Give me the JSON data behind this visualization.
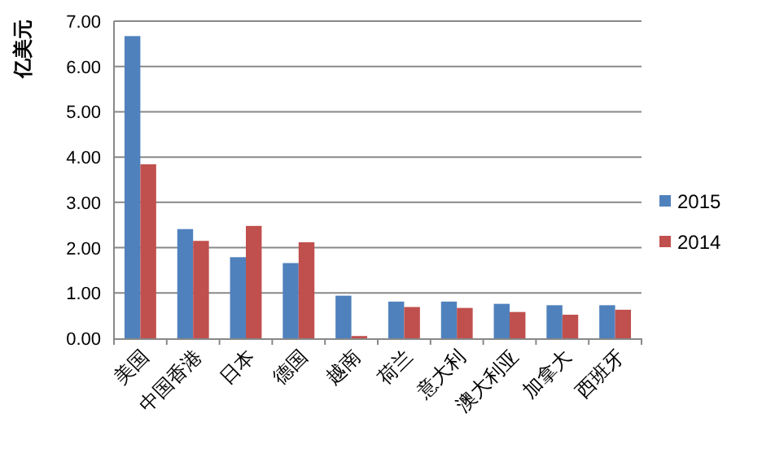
{
  "chart_data": {
    "type": "bar",
    "ylabel": "亿美元",
    "categories": [
      "美国",
      "中国香港",
      "日本",
      "德国",
      "越南",
      "荷兰",
      "意大利",
      "澳大利亚",
      "加拿大",
      "西班牙"
    ],
    "series": [
      {
        "name": "2015",
        "color": "#4f81bd",
        "values": [
          6.67,
          2.41,
          1.79,
          1.66,
          0.94,
          0.81,
          0.81,
          0.76,
          0.73,
          0.73
        ]
      },
      {
        "name": "2014",
        "color": "#c0504d",
        "values": [
          3.84,
          2.15,
          2.48,
          2.12,
          0.05,
          0.69,
          0.67,
          0.58,
          0.52,
          0.63
        ]
      }
    ],
    "ylim": [
      0,
      7
    ],
    "yticks": [
      {
        "value": 0,
        "label": "0.00"
      },
      {
        "value": 1,
        "label": "1.00"
      },
      {
        "value": 2,
        "label": "2.00"
      },
      {
        "value": 3,
        "label": "3.00"
      },
      {
        "value": 4,
        "label": "4.00"
      },
      {
        "value": 5,
        "label": "5.00"
      },
      {
        "value": 6,
        "label": "6.00"
      },
      {
        "value": 7,
        "label": "7.00"
      }
    ],
    "grid": "y",
    "legend": "right"
  }
}
